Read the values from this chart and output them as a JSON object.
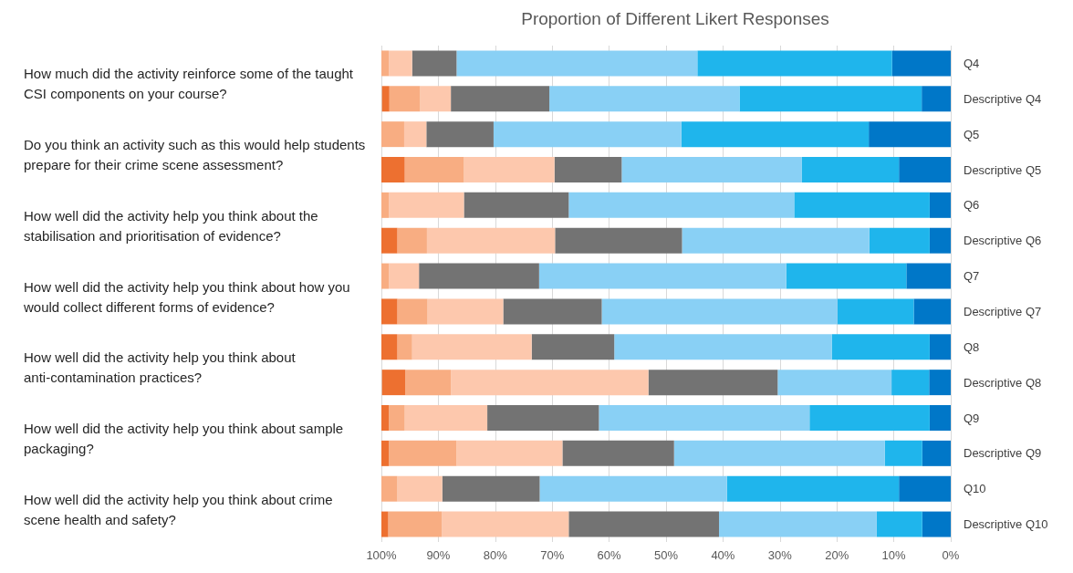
{
  "chart_data": {
    "type": "bar",
    "orientation": "horizontal",
    "stacked": true,
    "title": "Proportion of Different Likert Responses",
    "categories": [
      "Q4",
      "Descriptive Q4",
      "Q5",
      "Descriptive Q5",
      "Q6",
      "Descriptive Q6",
      "Q7",
      "Descriptive Q7",
      "Q8",
      "Descriptive Q8",
      "Q9",
      "Descriptive Q9",
      "Q10",
      "Descriptive Q10"
    ],
    "series": [
      {
        "color": "#0077c8",
        "values": [
          10.3,
          5.1,
          14.4,
          9.1,
          3.7,
          3.7,
          7.8,
          6.5,
          3.7,
          3.8,
          3.7,
          5.0,
          9.1,
          5.0
        ]
      },
      {
        "color": "#1fb5ec",
        "values": [
          34.2,
          32.0,
          32.9,
          17.1,
          23.8,
          10.6,
          21.1,
          13.4,
          17.2,
          6.6,
          21.1,
          6.6,
          30.2,
          8.0
        ]
      },
      {
        "color": "#89d0f5",
        "values": [
          42.3,
          33.4,
          33.0,
          31.6,
          39.6,
          32.9,
          43.4,
          41.4,
          38.2,
          20.0,
          37.0,
          37.0,
          32.9,
          27.7
        ]
      },
      {
        "color": "#737373",
        "values": [
          7.8,
          17.3,
          11.8,
          11.8,
          18.4,
          22.3,
          21.1,
          17.3,
          14.5,
          22.7,
          19.6,
          19.6,
          17.1,
          26.4
        ]
      },
      {
        "color": "#fdc8ad",
        "values": [
          4.1,
          5.4,
          3.9,
          15.9,
          13.2,
          22.5,
          5.3,
          13.3,
          21.0,
          34.7,
          14.5,
          18.6,
          7.9,
          22.3
        ]
      },
      {
        "color": "#f8ad82",
        "values": [
          1.3,
          5.4,
          4.1,
          10.4,
          1.3,
          5.2,
          1.3,
          5.3,
          2.6,
          8.0,
          2.8,
          11.9,
          2.8,
          9.4
        ]
      },
      {
        "color": "#ed7030",
        "values": [
          0,
          1.3,
          0,
          4.1,
          0,
          2.8,
          0,
          2.8,
          2.8,
          4.1,
          1.3,
          1.3,
          0,
          1.3
        ]
      }
    ],
    "xlim": [
      100,
      0
    ],
    "xticks": [
      {
        "value": 100,
        "label": "100%"
      },
      {
        "value": 90,
        "label": "90%"
      },
      {
        "value": 80,
        "label": "80%"
      },
      {
        "value": 70,
        "label": "70%"
      },
      {
        "value": 60,
        "label": "60%"
      },
      {
        "value": 50,
        "label": "50%"
      },
      {
        "value": 40,
        "label": "40%"
      },
      {
        "value": 30,
        "label": "30%"
      },
      {
        "value": 20,
        "label": "20%"
      },
      {
        "value": 10,
        "label": "10%"
      },
      {
        "value": 0,
        "label": "0%"
      }
    ],
    "grid": "x",
    "annotations": [
      "How much did the activity reinforce some of the taught CSI components on your course?",
      "Do you think an activity such as this would help students prepare for their crime scene assessment?",
      "How well did the activity help you think about the stabilisation and prioritisation of evidence?",
      "How well did the activity help you think about how you would collect different forms of evidence?",
      "How well did the activity help you think about anti-contamination practices?",
      "How well did the activity help you think about sample packaging?",
      "How well did the activity help you think about crime scene health and safety?"
    ]
  }
}
